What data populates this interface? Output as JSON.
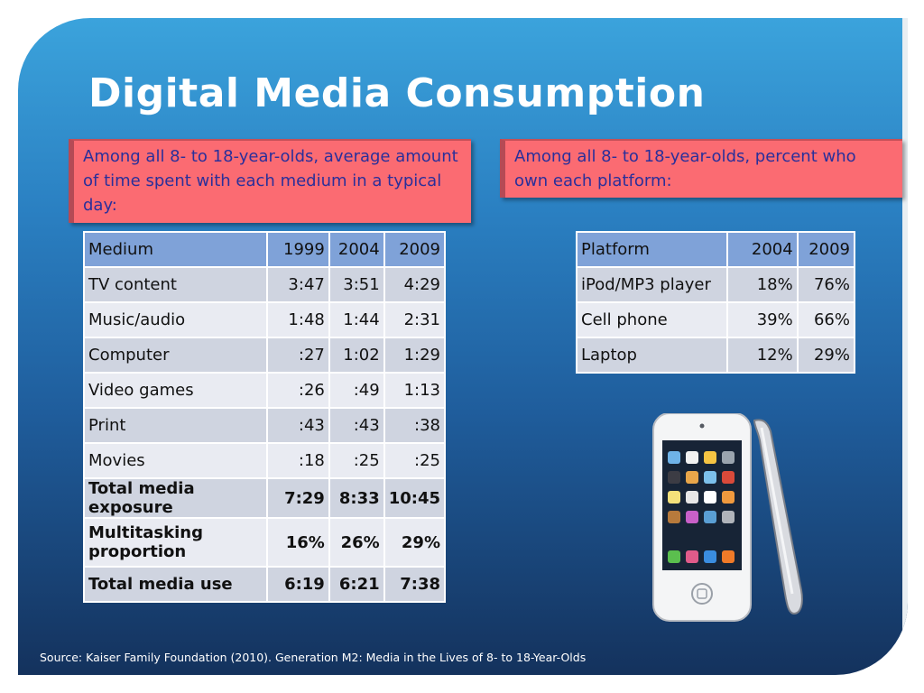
{
  "slide": {
    "title": "Digital Media Consumption",
    "left_callout": "Among all 8- to 18-year-olds, average amount of time spent with each medium in a typical day:",
    "right_callout": "Among all 8- to 18-year-olds, percent who own each platform:",
    "source": "Source: Kaiser Family Foundation (2010). Generation M2: Media in the Lives of 8- to 18-Year-Olds"
  },
  "media_table": {
    "headers": [
      "Medium",
      "1999",
      "2004",
      "2009"
    ],
    "rows": [
      [
        "TV content",
        "3:47",
        "3:51",
        "4:29"
      ],
      [
        "Music/audio",
        "1:48",
        "1:44",
        "2:31"
      ],
      [
        "Computer",
        ":27",
        "1:02",
        "1:29"
      ],
      [
        "Video games",
        ":26",
        ":49",
        "1:13"
      ],
      [
        "Print",
        ":43",
        ":43",
        ":38"
      ],
      [
        "Movies",
        ":18",
        ":25",
        ":25"
      ],
      [
        "Total media exposure",
        "7:29",
        "8:33",
        "10:45"
      ],
      [
        "Multitasking proportion",
        "16%",
        "26%",
        "29%"
      ],
      [
        "Total media use",
        "6:19",
        "6:21",
        "7:38"
      ]
    ]
  },
  "platform_table": {
    "headers": [
      "Platform",
      "2004",
      "2009"
    ],
    "rows": [
      [
        "iPod/MP3 player",
        "18%",
        "76%"
      ],
      [
        "Cell phone",
        "39%",
        "66%"
      ],
      [
        "Laptop",
        "12%",
        "29%"
      ]
    ]
  },
  "image": {
    "icon": "ipod-touch-image"
  },
  "colors": {
    "background_top": "#3ba3dc",
    "background_bottom": "#14325d",
    "callout_fill": "#fb6b72",
    "callout_text": "#2a2f9a",
    "table_header": "#7fa2d8",
    "table_row_alt": "#cfd4e0",
    "table_row_light": "#e9ebf2"
  }
}
